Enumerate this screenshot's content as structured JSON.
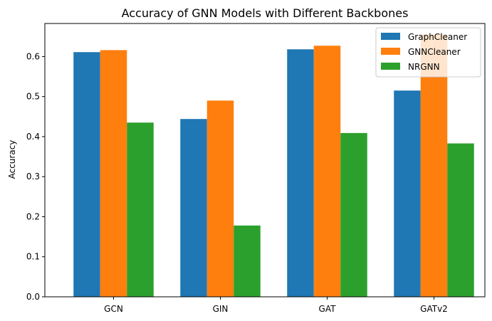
{
  "chart_data": {
    "type": "bar",
    "title": "Accuracy of GNN Models with Different Backbones",
    "xlabel": "",
    "ylabel": "Accuracy",
    "categories": [
      "GCN",
      "GIN",
      "GAT",
      "GATv2"
    ],
    "series": [
      {
        "name": "GraphCleaner",
        "color": "#1f77b4",
        "values": [
          0.611,
          0.444,
          0.618,
          0.515
        ]
      },
      {
        "name": "GNNCleaner",
        "color": "#ff7f0e",
        "values": [
          0.616,
          0.49,
          0.627,
          0.655
        ]
      },
      {
        "name": "NRGNN",
        "color": "#2ca02c",
        "values": [
          0.435,
          0.178,
          0.409,
          0.383
        ]
      }
    ],
    "ylim": [
      0,
      0.6825
    ],
    "yticks": [
      "0.0",
      "0.1",
      "0.2",
      "0.3",
      "0.4",
      "0.5",
      "0.6"
    ],
    "grid": false,
    "legend_position": "top-right"
  }
}
